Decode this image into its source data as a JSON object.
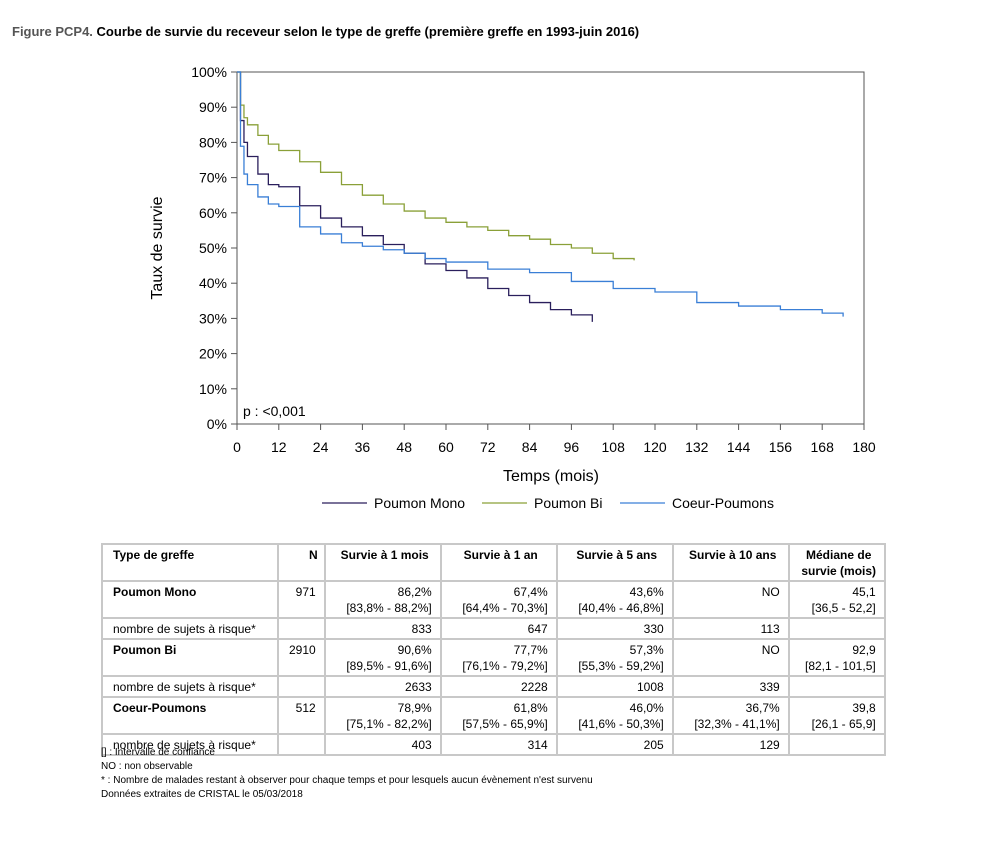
{
  "figure": {
    "label": "Figure PCP4.",
    "title": "Courbe de survie du receveur selon le type de greffe (première greffe en 1993-juin 2016)"
  },
  "chart_data": {
    "type": "line",
    "xlabel": "Temps (mois)",
    "ylabel": "Taux de survie",
    "xlim": [
      0,
      180
    ],
    "ylim": [
      0,
      100
    ],
    "x_ticks": [
      0,
      12,
      24,
      36,
      48,
      60,
      72,
      84,
      96,
      108,
      120,
      132,
      144,
      156,
      168,
      180
    ],
    "y_ticks": [
      0,
      10,
      20,
      30,
      40,
      50,
      60,
      70,
      80,
      90,
      100
    ],
    "y_tick_labels": [
      "0%",
      "10%",
      "20%",
      "30%",
      "40%",
      "50%",
      "60%",
      "70%",
      "80%",
      "90%",
      "100%"
    ],
    "annotation": "p : <0,001",
    "legend_position": "bottom",
    "series": [
      {
        "name": "Poumon Mono",
        "color": "#2a1f5c",
        "x": [
          0,
          1,
          2,
          3,
          6,
          9,
          12,
          18,
          24,
          30,
          36,
          42,
          48,
          54,
          60,
          66,
          72,
          78,
          84,
          90,
          96,
          102
        ],
        "y": [
          100,
          86.2,
          80,
          76,
          71,
          68,
          67.4,
          62,
          58.5,
          56,
          53.5,
          51,
          48.5,
          45.5,
          43.6,
          41.5,
          38.5,
          36.5,
          34.5,
          32.5,
          31,
          29
        ]
      },
      {
        "name": "Poumon Bi",
        "color": "#8aa038",
        "x": [
          0,
          1,
          2,
          3,
          6,
          9,
          12,
          18,
          24,
          30,
          36,
          42,
          48,
          54,
          60,
          66,
          72,
          78,
          84,
          90,
          96,
          102,
          108,
          114
        ],
        "y": [
          100,
          90.6,
          87,
          85,
          82,
          79.5,
          77.7,
          74.5,
          71.5,
          68,
          65,
          62.5,
          60.5,
          58.5,
          57.3,
          56,
          55,
          53.5,
          52.5,
          51,
          50,
          48.5,
          47,
          46.5
        ]
      },
      {
        "name": "Coeur-Poumons",
        "color": "#3a7fd6",
        "x": [
          0,
          1,
          2,
          3,
          6,
          9,
          12,
          18,
          24,
          30,
          36,
          42,
          48,
          54,
          60,
          72,
          84,
          96,
          108,
          120,
          132,
          144,
          156,
          168,
          174
        ],
        "y": [
          100,
          78.9,
          71,
          68,
          64.5,
          62.5,
          61.8,
          56,
          54,
          51.5,
          50.5,
          49.5,
          48.5,
          47,
          46,
          44,
          43,
          40.5,
          38.5,
          37.5,
          34.5,
          33.5,
          32.5,
          31.5,
          30.5
        ]
      }
    ]
  },
  "table": {
    "headers": [
      "Type de greffe",
      "N",
      "Survie à 1 mois",
      "Survie à 1 an",
      "Survie à 5 ans",
      "Survie à 10 ans",
      "Médiane de survie (mois)"
    ],
    "groups": [
      {
        "name": "Poumon Mono",
        "n": "971",
        "m1": "86,2%",
        "m1_ci": "[83,8% - 88,2%]",
        "y1": "67,4%",
        "y1_ci": "[64,4% - 70,3%]",
        "y5": "43,6%",
        "y5_ci": "[40,4% - 46,8%]",
        "y10": "NO",
        "y10_ci": "",
        "median": "45,1",
        "median_ci": "[36,5 - 52,2]",
        "risk_label": "nombre de sujets à risque*",
        "risk": [
          "833",
          "647",
          "330",
          "113"
        ]
      },
      {
        "name": "Poumon Bi",
        "n": "2910",
        "m1": "90,6%",
        "m1_ci": "[89,5% - 91,6%]",
        "y1": "77,7%",
        "y1_ci": "[76,1% - 79,2%]",
        "y5": "57,3%",
        "y5_ci": "[55,3% - 59,2%]",
        "y10": "NO",
        "y10_ci": "",
        "median": "92,9",
        "median_ci": "[82,1 - 101,5]",
        "risk_label": "nombre de sujets à risque*",
        "risk": [
          "2633",
          "2228",
          "1008",
          "339"
        ]
      },
      {
        "name": "Coeur-Poumons",
        "n": "512",
        "m1": "78,9%",
        "m1_ci": "[75,1% - 82,2%]",
        "y1": "61,8%",
        "y1_ci": "[57,5% - 65,9%]",
        "y5": "46,0%",
        "y5_ci": "[41,6% - 50,3%]",
        "y10": "36,7%",
        "y10_ci": "[32,3% - 41,1%]",
        "median": "39,8",
        "median_ci": "[26,1 - 65,9]",
        "risk_label": "nombre de sujets à risque*",
        "risk": [
          "403",
          "314",
          "205",
          "129"
        ]
      }
    ]
  },
  "notes": [
    "[] : Intervalle de confiance",
    "NO : non observable",
    "* : Nombre de malades restant à observer pour chaque temps et pour lesquels aucun évènement n'est survenu",
    "Données extraites de CRISTAL le 05/03/2018"
  ]
}
